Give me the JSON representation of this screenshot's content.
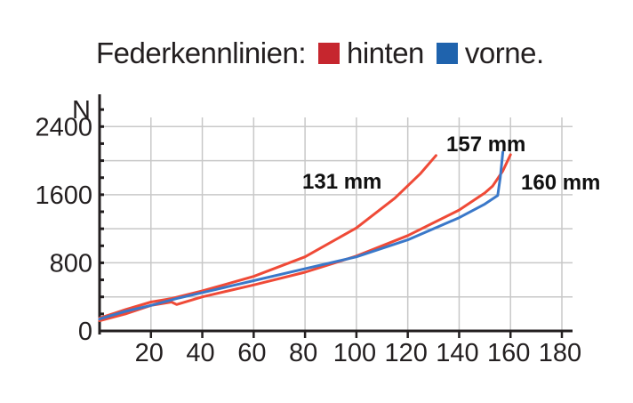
{
  "legend": {
    "title": "Federkennlinien:",
    "hinten": "hinten",
    "vorne": "vorne."
  },
  "colors": {
    "hinten": "#ef4a37",
    "vorne": "#3a78c9",
    "hinten_swatch": "#c6262e",
    "vorne_swatch": "#1f63ad",
    "grid": "#c8c8c8",
    "axis": "#231f20"
  },
  "chart_data": {
    "type": "line",
    "title": "Federkennlinien",
    "xlabel": "",
    "ylabel": "N",
    "xlim": [
      0,
      180
    ],
    "ylim": [
      0,
      2800
    ],
    "xticks": [
      20,
      40,
      60,
      80,
      100,
      120,
      140,
      160,
      180
    ],
    "yticks": [
      0,
      800,
      1600,
      2400
    ],
    "grid": true,
    "series": [
      {
        "name": "hinten 131 mm",
        "color_key": "hinten",
        "x": [
          0,
          10,
          20,
          28,
          40,
          60,
          80,
          100,
          115,
          125,
          131
        ],
        "y": [
          150,
          250,
          340,
          380,
          470,
          640,
          870,
          1210,
          1560,
          1850,
          2060
        ]
      },
      {
        "name": "hinten 160 mm",
        "color_key": "hinten",
        "x": [
          0,
          10,
          20,
          28,
          30,
          40,
          60,
          80,
          100,
          120,
          140,
          150,
          153,
          157,
          160
        ],
        "y": [
          120,
          200,
          300,
          340,
          310,
          400,
          540,
          690,
          880,
          1120,
          1420,
          1620,
          1700,
          1880,
          2070
        ]
      },
      {
        "name": "vorne 157 mm",
        "color_key": "vorne",
        "x": [
          0,
          10,
          20,
          30,
          40,
          60,
          80,
          100,
          120,
          140,
          150,
          155,
          156,
          157
        ],
        "y": [
          140,
          230,
          300,
          380,
          450,
          590,
          730,
          870,
          1070,
          1330,
          1490,
          1590,
          1800,
          2100
        ]
      }
    ],
    "annotations": [
      {
        "text": "131 mm",
        "x": 130,
        "y": 2060
      },
      {
        "text": "157 mm",
        "x": 157,
        "y": 2100
      },
      {
        "text": "160 mm",
        "x": 160,
        "y": 2070
      }
    ]
  }
}
